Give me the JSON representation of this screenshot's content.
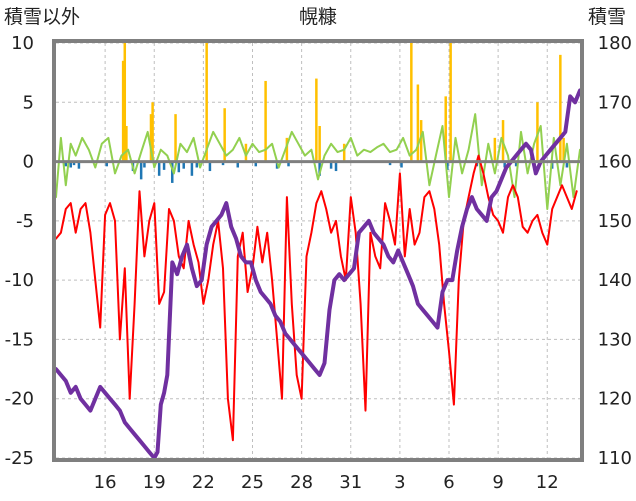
{
  "chart_data": {
    "type": "line",
    "title": "幌糠",
    "left_axis_label": "積雪以外",
    "right_axis_label": "積雪",
    "left_ylim": [
      -25,
      10
    ],
    "left_yticks": [
      "10",
      "5",
      "0",
      "-5",
      "-10",
      "-15",
      "-20",
      "-25"
    ],
    "right_ylim": [
      110,
      180
    ],
    "right_yticks": [
      "180",
      "170",
      "160",
      "150",
      "140",
      "130",
      "120",
      "110"
    ],
    "x_ticks": [
      "16",
      "19",
      "22",
      "25",
      "28",
      "31",
      "3",
      "6",
      "9",
      "12"
    ],
    "x_tick_days": [
      3,
      6,
      9,
      12,
      15,
      18,
      21,
      24,
      27,
      30
    ],
    "xlim": [
      0,
      32
    ],
    "grid": true,
    "colors": {
      "bars_orange": "#ffc000",
      "bars_blue": "#1f77b4",
      "green": "#92d050",
      "red": "#ff0000",
      "purple": "#7030a0",
      "zero_line": "#7f7f7f",
      "frame": "#7f7f7f"
    },
    "series": [
      {
        "role": "snowfall_bars_positive",
        "axis": "left",
        "style": "bar",
        "color": "#ffc000",
        "x": [
          4.1,
          4.2,
          4.3,
          5.8,
          5.9,
          7.3,
          9.2,
          10.3,
          11.6,
          12.8,
          14.1,
          15.9,
          16.1,
          17.6,
          21.7,
          22.1,
          22.3,
          23.8,
          24.1,
          26.8,
          27.3,
          29.4,
          30.8,
          31.0
        ],
        "y": [
          8.5,
          10.0,
          3.0,
          4.0,
          5.0,
          4.0,
          10.0,
          4.5,
          1.5,
          6.8,
          2.0,
          7.0,
          3.0,
          1.5,
          10.0,
          6.5,
          3.5,
          5.5,
          10.0,
          2.0,
          3.5,
          5.0,
          9.0,
          2.0
        ]
      },
      {
        "role": "bars_negative",
        "axis": "left",
        "style": "bar",
        "color": "#1f77b4",
        "x": [
          0.6,
          0.9,
          1.1,
          1.4,
          3.1,
          4.7,
          5.2,
          5.4,
          6.3,
          6.6,
          7.1,
          7.5,
          7.8,
          8.3,
          8.6,
          9.4,
          10.2,
          11.1,
          12.2,
          13.5,
          14.2,
          16.1,
          16.8,
          17.1,
          20.4,
          21.1,
          23.9,
          25.7,
          27.4,
          28.1,
          30.3,
          31.2
        ],
        "y": [
          -0.4,
          -0.5,
          -0.3,
          -0.6,
          -0.4,
          -0.8,
          -1.5,
          -0.5,
          -1.2,
          -0.7,
          -1.8,
          -0.9,
          -0.6,
          -1.2,
          -0.5,
          -0.8,
          -0.3,
          -0.5,
          -0.4,
          -0.6,
          -0.4,
          -1.2,
          -0.6,
          -0.8,
          -0.3,
          -0.5,
          -0.7,
          -0.4,
          -0.5,
          -0.4,
          -0.6,
          -0.5
        ]
      },
      {
        "role": "green_line",
        "axis": "left",
        "style": "line",
        "color": "#92d050",
        "x": [
          0,
          0.3,
          0.6,
          0.9,
          1.2,
          1.6,
          2.0,
          2.4,
          2.8,
          3.2,
          3.6,
          4.0,
          4.4,
          4.8,
          5.2,
          5.6,
          6.0,
          6.4,
          6.8,
          7.2,
          7.6,
          8.0,
          8.4,
          8.8,
          9.2,
          9.6,
          10.0,
          10.4,
          10.8,
          11.2,
          11.6,
          12.0,
          12.4,
          12.8,
          13.2,
          13.6,
          14.0,
          14.4,
          14.8,
          15.2,
          15.6,
          16.0,
          16.4,
          16.8,
          17.2,
          17.6,
          18.0,
          18.4,
          18.8,
          19.2,
          19.6,
          20.0,
          20.4,
          20.8,
          21.2,
          21.6,
          22.0,
          22.4,
          22.8,
          23.2,
          23.6,
          24.0,
          24.4,
          24.8,
          25.2,
          25.6,
          26.0,
          26.4,
          26.8,
          27.2,
          27.6,
          28.0,
          28.4,
          28.8,
          29.2,
          29.6,
          30.0,
          30.4,
          30.8,
          31.2,
          31.6,
          32.0
        ],
        "y": [
          -3,
          2,
          -2,
          1.5,
          0.5,
          2,
          1,
          -0.5,
          1.5,
          2,
          -1,
          0.5,
          1,
          -1,
          0.8,
          2.5,
          -0.5,
          1,
          0.5,
          -1,
          1.5,
          0.8,
          2,
          -0.5,
          1,
          2.5,
          1.5,
          0.5,
          1,
          2,
          0.5,
          1.5,
          0.8,
          1,
          1.5,
          -0.5,
          1,
          2.5,
          1.5,
          0.5,
          1,
          -1.5,
          0.5,
          1.5,
          0.8,
          1,
          2,
          0.5,
          1,
          0.8,
          1.2,
          1.5,
          0.8,
          1,
          2,
          0.5,
          1,
          2.5,
          -2,
          0.5,
          3,
          -3,
          2,
          -1,
          1,
          4,
          -2,
          1.5,
          -1,
          2,
          0.5,
          -3,
          2.5,
          -1,
          1.5,
          3,
          -4,
          2,
          -2,
          1.5,
          -3,
          1
        ]
      },
      {
        "role": "red_line",
        "axis": "left",
        "style": "line",
        "color": "#ff0000",
        "x": [
          0,
          0.3,
          0.6,
          0.9,
          1.2,
          1.5,
          1.8,
          2.1,
          2.4,
          2.7,
          3.0,
          3.3,
          3.6,
          3.9,
          4.2,
          4.5,
          4.8,
          5.1,
          5.4,
          5.7,
          6.0,
          6.3,
          6.6,
          6.9,
          7.2,
          7.5,
          7.8,
          8.1,
          8.4,
          8.7,
          9.0,
          9.3,
          9.6,
          9.9,
          10.2,
          10.5,
          10.8,
          11.1,
          11.4,
          11.7,
          12.0,
          12.3,
          12.6,
          12.9,
          13.2,
          13.5,
          13.8,
          14.1,
          14.4,
          14.7,
          15.0,
          15.3,
          15.6,
          15.9,
          16.2,
          16.5,
          16.8,
          17.1,
          17.4,
          17.7,
          18.0,
          18.3,
          18.6,
          18.9,
          19.2,
          19.5,
          19.8,
          20.1,
          20.4,
          20.7,
          21.0,
          21.3,
          21.6,
          21.9,
          22.2,
          22.5,
          22.8,
          23.1,
          23.4,
          23.7,
          24.0,
          24.3,
          24.6,
          24.9,
          25.2,
          25.5,
          25.8,
          26.1,
          26.4,
          26.7,
          27.0,
          27.3,
          27.6,
          27.9,
          28.2,
          28.5,
          28.8,
          29.1,
          29.4,
          29.7,
          30.0,
          30.3,
          30.6,
          30.9,
          31.2,
          31.5,
          31.8
        ],
        "y": [
          -6.5,
          -6.0,
          -4.0,
          -3.5,
          -6.0,
          -4.0,
          -3.5,
          -6.0,
          -10.0,
          -14.0,
          -4.5,
          -3.5,
          -5.0,
          -15.0,
          -9.0,
          -20.0,
          -12.0,
          -2.5,
          -8.0,
          -5.0,
          -3.5,
          -12.0,
          -11.0,
          -4.0,
          -5.0,
          -8.0,
          -9.0,
          -5.0,
          -7.0,
          -8.5,
          -12.0,
          -10.0,
          -7.0,
          -5.0,
          -9.0,
          -20.0,
          -23.5,
          -8.0,
          -6.0,
          -11.0,
          -9.0,
          -5.5,
          -8.5,
          -6.0,
          -10.0,
          -15.0,
          -20.0,
          -3.0,
          -12.0,
          -18.0,
          -20.0,
          -8.0,
          -6.0,
          -3.5,
          -2.5,
          -4.0,
          -6.0,
          -5.0,
          -8.0,
          -10.0,
          -3.0,
          -6.0,
          -12.0,
          -21.0,
          -6.0,
          -8.0,
          -9.0,
          -3.5,
          -5.0,
          -7.0,
          -1.0,
          -8.0,
          -4.0,
          -7.0,
          -6.0,
          -3.0,
          -2.5,
          -4.0,
          -7.0,
          -12.0,
          -16.0,
          -20.5,
          -10.0,
          -5.0,
          -3.0,
          -1.0,
          0.5,
          -1.0,
          -3.0,
          -4.5,
          -5.0,
          -6.0,
          -3.0,
          -2.0,
          -3.0,
          -5.5,
          -6.0,
          -5.0,
          -4.5,
          -6.0,
          -7.0,
          -4.0,
          -3.0,
          -2.0,
          -3.0,
          -4.0,
          -2.5
        ]
      },
      {
        "role": "snow_depth",
        "axis": "right",
        "style": "line",
        "color": "#7030a0",
        "x": [
          0,
          0.3,
          0.6,
          0.9,
          1.2,
          1.5,
          1.8,
          2.1,
          2.4,
          2.7,
          3.0,
          3.3,
          3.6,
          3.9,
          4.2,
          4.5,
          4.8,
          5.1,
          5.4,
          5.7,
          6.0,
          6.2,
          6.4,
          6.6,
          6.8,
          7.1,
          7.4,
          7.7,
          8.0,
          8.3,
          8.6,
          8.9,
          9.2,
          9.5,
          9.8,
          10.1,
          10.4,
          10.7,
          11.0,
          11.3,
          11.6,
          11.9,
          12.2,
          12.5,
          12.8,
          13.1,
          13.4,
          13.7,
          14.0,
          14.3,
          14.6,
          14.9,
          15.2,
          15.5,
          15.8,
          16.1,
          16.4,
          16.7,
          17.0,
          17.3,
          17.6,
          17.9,
          18.2,
          18.5,
          18.8,
          19.1,
          19.4,
          19.7,
          20.0,
          20.3,
          20.6,
          20.9,
          21.2,
          21.5,
          21.8,
          22.1,
          22.4,
          22.7,
          23.0,
          23.3,
          23.6,
          23.9,
          24.2,
          24.5,
          24.8,
          25.1,
          25.4,
          25.7,
          26.0,
          26.3,
          26.6,
          26.9,
          27.2,
          27.5,
          27.8,
          28.1,
          28.4,
          28.7,
          29.0,
          29.3,
          29.6,
          29.9,
          30.2,
          30.5,
          30.8,
          31.1,
          31.4,
          31.7,
          32.0
        ],
        "y": [
          125,
          124,
          123,
          121,
          122,
          120,
          119,
          118,
          120,
          122,
          121,
          120,
          119,
          118,
          116,
          115,
          114,
          113,
          112,
          111,
          110,
          111,
          119,
          121,
          124,
          143,
          141,
          144,
          146,
          142,
          139,
          140,
          146,
          149,
          150,
          151,
          153,
          149,
          147,
          144,
          143,
          143,
          140,
          138,
          137,
          136,
          134,
          133,
          131,
          130,
          129,
          128,
          127,
          126,
          125,
          124,
          126,
          135,
          140,
          141,
          140,
          141,
          142,
          148,
          149,
          150,
          148,
          147,
          146,
          144,
          143,
          145,
          143,
          141,
          139,
          136,
          135,
          134,
          133,
          132,
          138,
          140,
          140,
          145,
          149,
          152,
          154,
          152,
          151,
          150,
          154,
          155,
          157,
          159,
          160,
          161,
          162,
          163,
          162,
          158,
          160,
          161,
          162,
          163,
          164,
          165,
          171,
          170,
          172
        ]
      }
    ]
  }
}
